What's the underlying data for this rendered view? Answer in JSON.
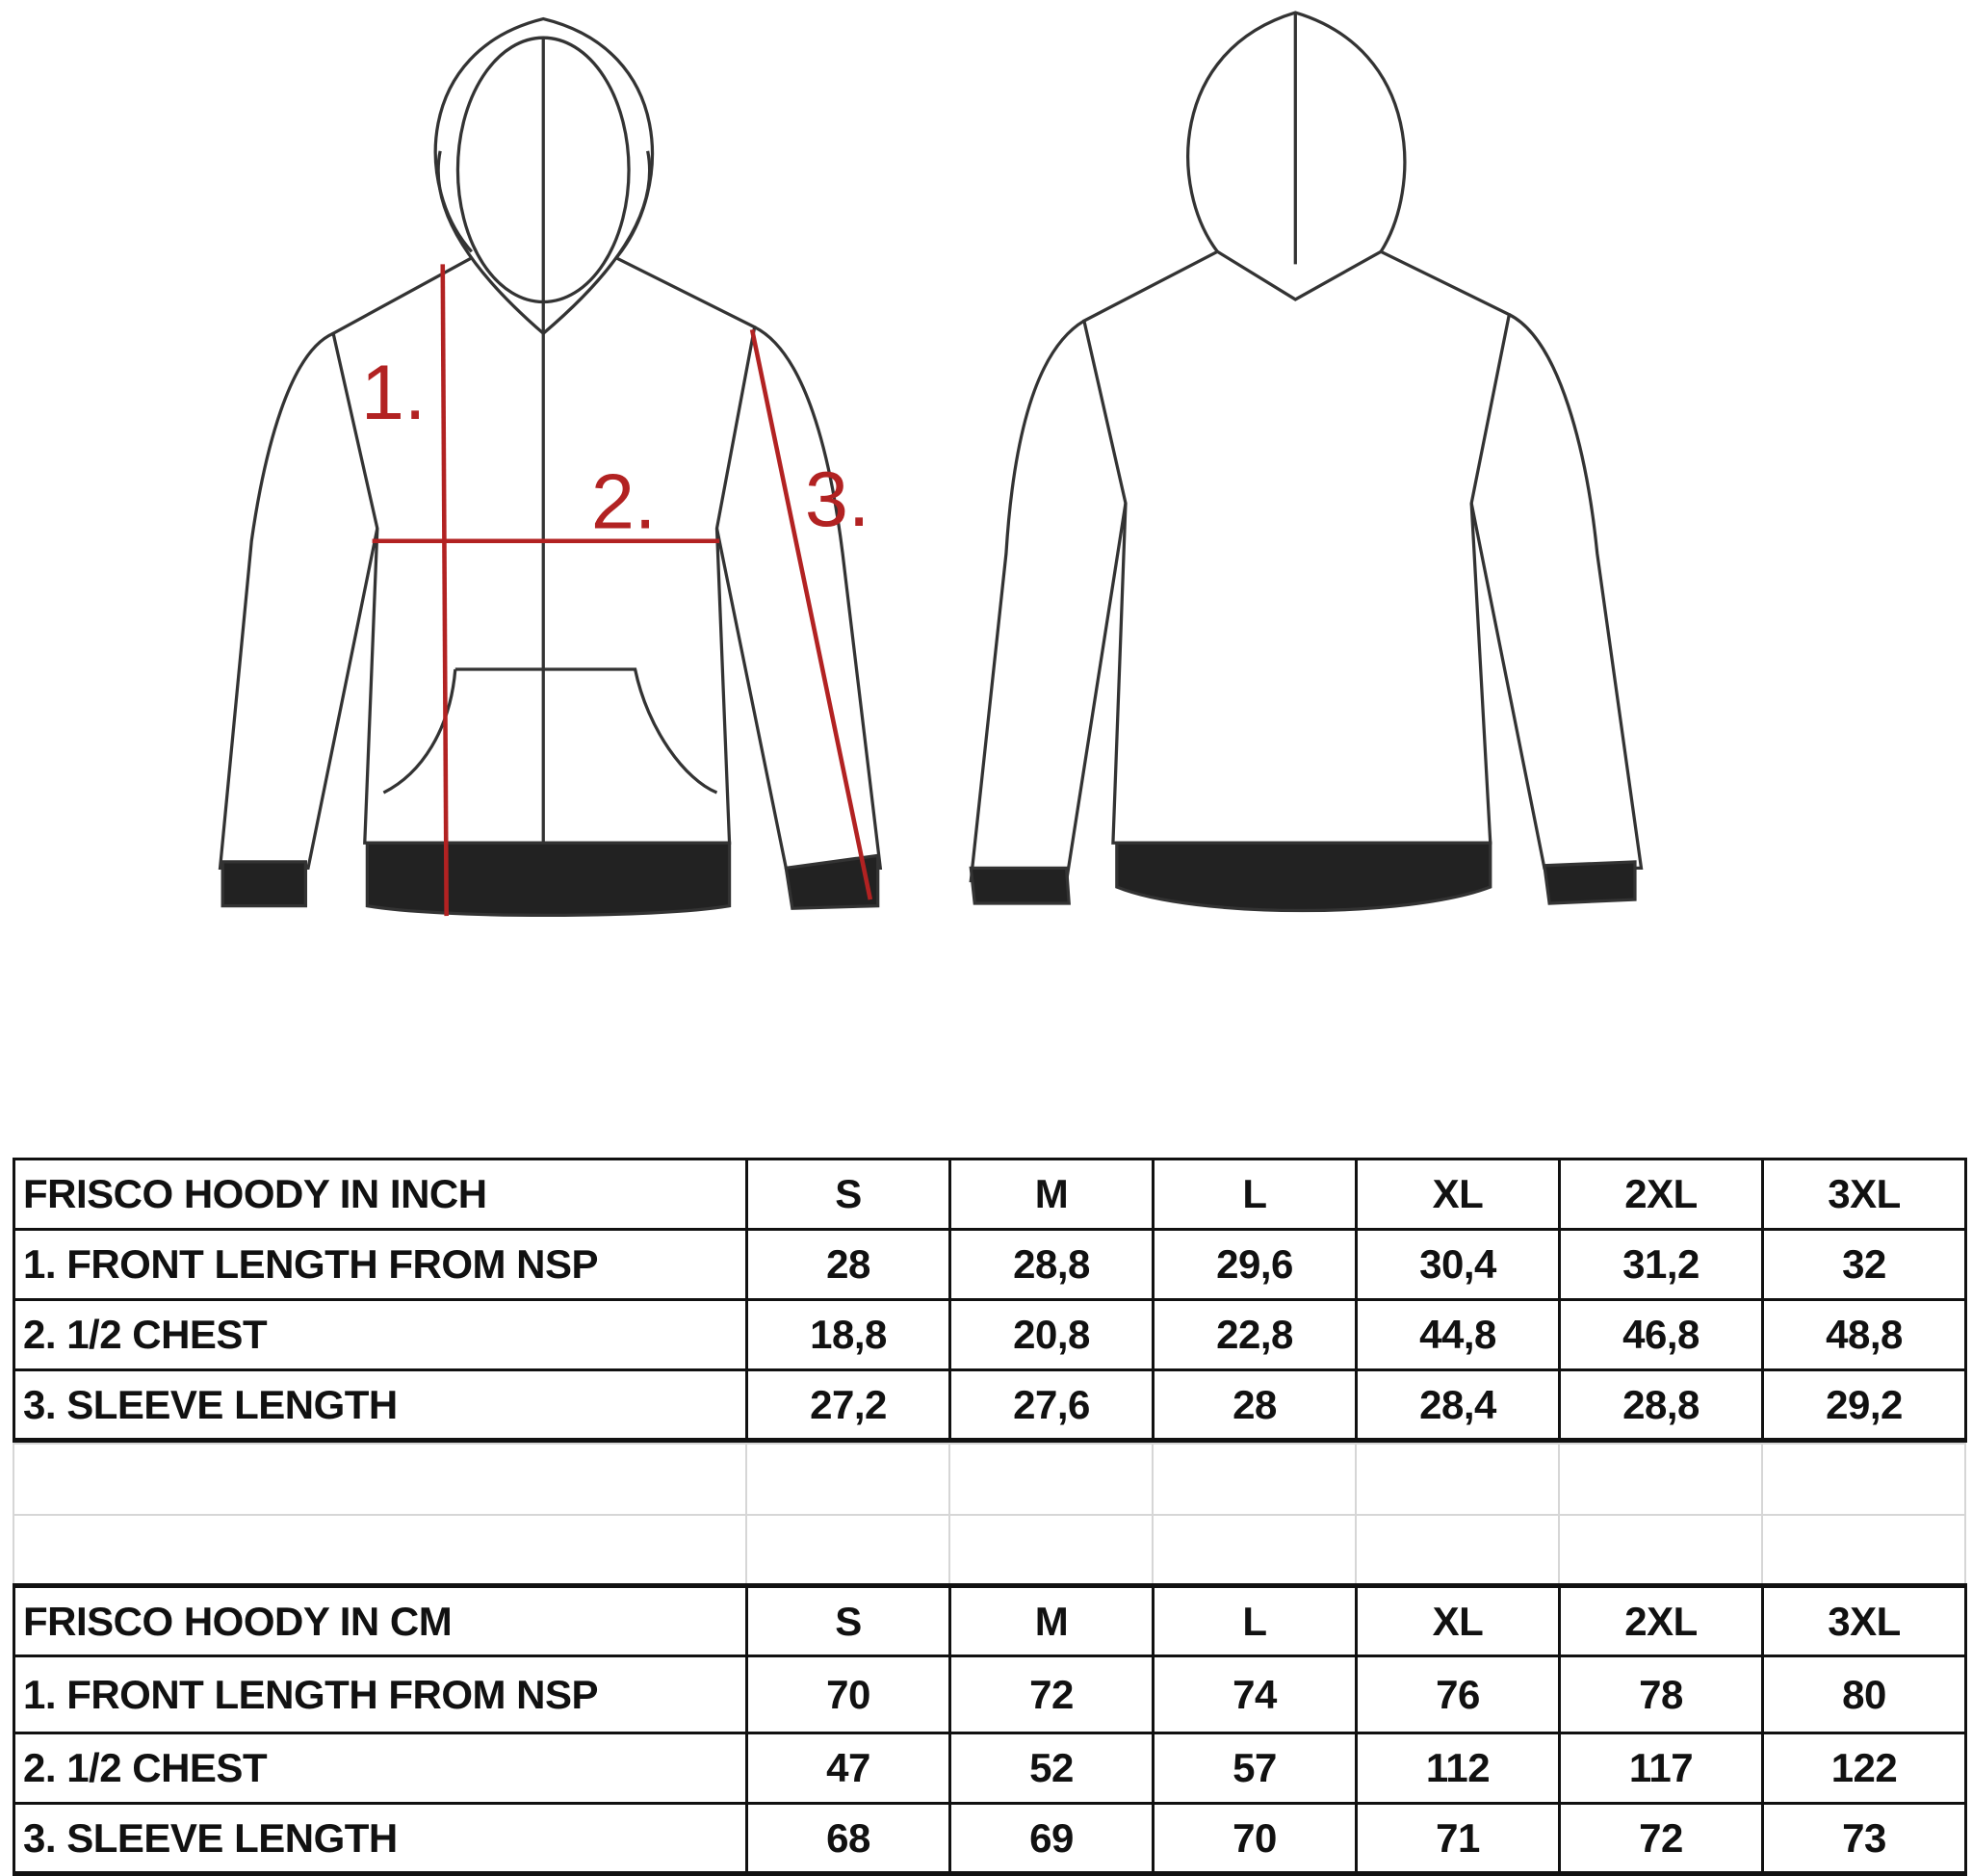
{
  "illustration": {
    "markers": [
      "1.",
      "2.",
      "3."
    ],
    "marker_color": "#b22222",
    "views": [
      "front",
      "back"
    ]
  },
  "inch_table": {
    "title": "FRISCO HOODY IN INCH",
    "sizes": [
      "S",
      "M",
      "L",
      "XL",
      "2XL",
      "3XL"
    ],
    "rows": [
      {
        "label": "1. FRONT LENGTH FROM NSP",
        "values": [
          "28",
          "28,8",
          "29,6",
          "30,4",
          "31,2",
          "32"
        ]
      },
      {
        "label": "2. 1/2 CHEST",
        "values": [
          "18,8",
          "20,8",
          "22,8",
          "44,8",
          "46,8",
          "48,8"
        ]
      },
      {
        "label": "3. SLEEVE LENGTH",
        "values": [
          "27,2",
          "27,6",
          "28",
          "28,4",
          "28,8",
          "29,2"
        ]
      }
    ]
  },
  "cm_table": {
    "title": "FRISCO HOODY IN CM",
    "sizes": [
      "S",
      "M",
      "L",
      "XL",
      "2XL",
      "3XL"
    ],
    "rows": [
      {
        "label": "1. FRONT LENGTH FROM NSP",
        "values": [
          "70",
          "72",
          "74",
          "76",
          "78",
          "80"
        ]
      },
      {
        "label": "2. 1/2 CHEST",
        "values": [
          "47",
          "52",
          "57",
          "112",
          "117",
          "122"
        ]
      },
      {
        "label": "3. SLEEVE LENGTH",
        "values": [
          "68",
          "69",
          "70",
          "71",
          "72",
          "73"
        ]
      }
    ]
  }
}
